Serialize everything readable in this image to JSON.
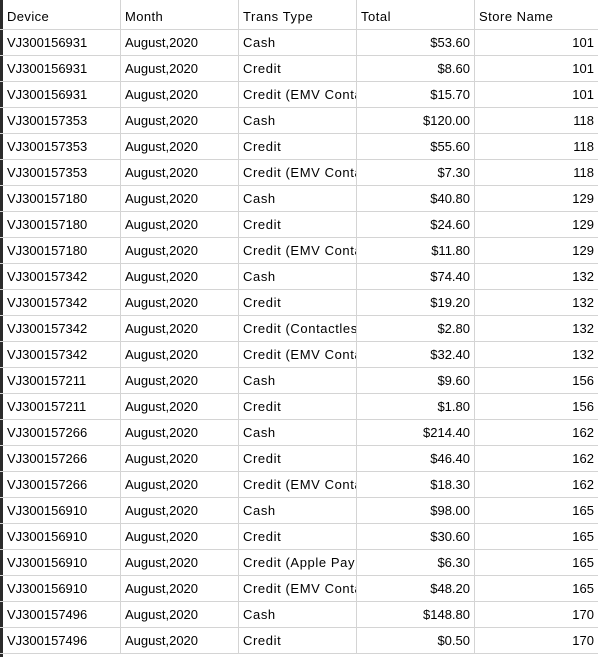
{
  "headers": {
    "device": "Device",
    "month": "Month",
    "trans_type": "Trans Type",
    "total": "Total",
    "store_name": "Store Name"
  },
  "rows": [
    {
      "device": "VJ300156931",
      "month": "August,2020",
      "trans_type": "Cash",
      "total": "$53.60",
      "store": "101"
    },
    {
      "device": "VJ300156931",
      "month": "August,2020",
      "trans_type": "Credit",
      "total": "$8.60",
      "store": "101"
    },
    {
      "device": "VJ300156931",
      "month": "August,2020",
      "trans_type": "Credit (EMV Conta",
      "total": "$15.70",
      "store": "101"
    },
    {
      "device": "VJ300157353",
      "month": "August,2020",
      "trans_type": "Cash",
      "total": "$120.00",
      "store": "118"
    },
    {
      "device": "VJ300157353",
      "month": "August,2020",
      "trans_type": "Credit",
      "total": "$55.60",
      "store": "118"
    },
    {
      "device": "VJ300157353",
      "month": "August,2020",
      "trans_type": "Credit (EMV Conta",
      "total": "$7.30",
      "store": "118"
    },
    {
      "device": "VJ300157180",
      "month": "August,2020",
      "trans_type": "Cash",
      "total": "$40.80",
      "store": "129"
    },
    {
      "device": "VJ300157180",
      "month": "August,2020",
      "trans_type": "Credit",
      "total": "$24.60",
      "store": "129"
    },
    {
      "device": "VJ300157180",
      "month": "August,2020",
      "trans_type": "Credit (EMV Conta",
      "total": "$11.80",
      "store": "129"
    },
    {
      "device": "VJ300157342",
      "month": "August,2020",
      "trans_type": "Cash",
      "total": "$74.40",
      "store": "132"
    },
    {
      "device": "VJ300157342",
      "month": "August,2020",
      "trans_type": "Credit",
      "total": "$19.20",
      "store": "132"
    },
    {
      "device": "VJ300157342",
      "month": "August,2020",
      "trans_type": "Credit (Contactles",
      "total": "$2.80",
      "store": "132"
    },
    {
      "device": "VJ300157342",
      "month": "August,2020",
      "trans_type": "Credit (EMV Conta",
      "total": "$32.40",
      "store": "132"
    },
    {
      "device": "VJ300157211",
      "month": "August,2020",
      "trans_type": "Cash",
      "total": "$9.60",
      "store": "156"
    },
    {
      "device": "VJ300157211",
      "month": "August,2020",
      "trans_type": "Credit",
      "total": "$1.80",
      "store": "156"
    },
    {
      "device": "VJ300157266",
      "month": "August,2020",
      "trans_type": "Cash",
      "total": "$214.40",
      "store": "162"
    },
    {
      "device": "VJ300157266",
      "month": "August,2020",
      "trans_type": "Credit",
      "total": "$46.40",
      "store": "162"
    },
    {
      "device": "VJ300157266",
      "month": "August,2020",
      "trans_type": "Credit (EMV Conta",
      "total": "$18.30",
      "store": "162"
    },
    {
      "device": "VJ300156910",
      "month": "August,2020",
      "trans_type": "Cash",
      "total": "$98.00",
      "store": "165"
    },
    {
      "device": "VJ300156910",
      "month": "August,2020",
      "trans_type": "Credit",
      "total": "$30.60",
      "store": "165"
    },
    {
      "device": "VJ300156910",
      "month": "August,2020",
      "trans_type": "Credit (Apple Pay",
      "total": "$6.30",
      "store": "165"
    },
    {
      "device": "VJ300156910",
      "month": "August,2020",
      "trans_type": "Credit (EMV Conta",
      "total": "$48.20",
      "store": "165"
    },
    {
      "device": "VJ300157496",
      "month": "August,2020",
      "trans_type": "Cash",
      "total": "$148.80",
      "store": "170"
    },
    {
      "device": "VJ300157496",
      "month": "August,2020",
      "trans_type": "Credit",
      "total": "$0.50",
      "store": "170"
    }
  ]
}
